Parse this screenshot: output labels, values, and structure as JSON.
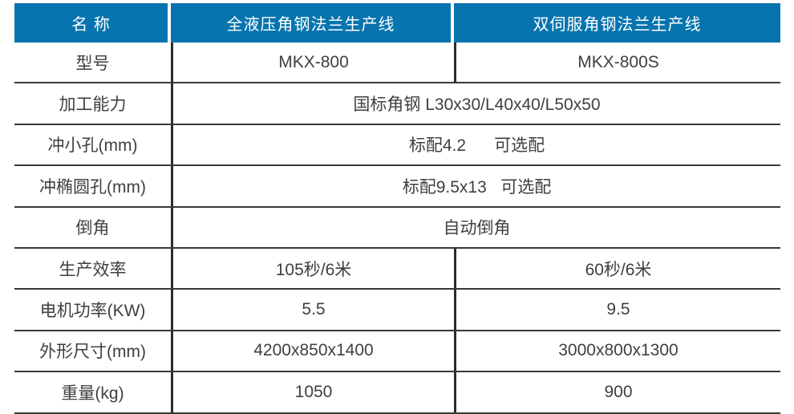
{
  "table": {
    "header": {
      "name": "名 称",
      "product1": "全液压角钢法兰生产线",
      "product2": "双伺服角钢法兰生产线"
    },
    "rows": [
      {
        "label": "型号",
        "values": [
          "MKX-800",
          "MKX-800S"
        ]
      },
      {
        "label": "加工能力",
        "values": [
          "国标角钢 L30x30/L40x40/L50x50"
        ]
      },
      {
        "label": "冲小孔(mm)",
        "values": [
          "标配4.2      可选配"
        ]
      },
      {
        "label": "冲椭圆孔(mm)",
        "values": [
          "标配9.5x13   可选配"
        ]
      },
      {
        "label": "倒角",
        "values": [
          "自动倒角"
        ]
      },
      {
        "label": "生产效率",
        "values": [
          "105秒/6米",
          "60秒/6米"
        ]
      },
      {
        "label": "电机功率(KW)",
        "values": [
          "5.5",
          "9.5"
        ]
      },
      {
        "label": "外形尺寸(mm)",
        "values": [
          "4200x850x1400",
          "3000x800x1300"
        ]
      },
      {
        "label": "重量(kg)",
        "values": [
          "1050",
          "900"
        ]
      }
    ],
    "colors": {
      "header_bg": "#0774AF",
      "header_text": "#FFFFFF",
      "body_text": "#3F3F3F",
      "grid_line": "#383838"
    }
  }
}
